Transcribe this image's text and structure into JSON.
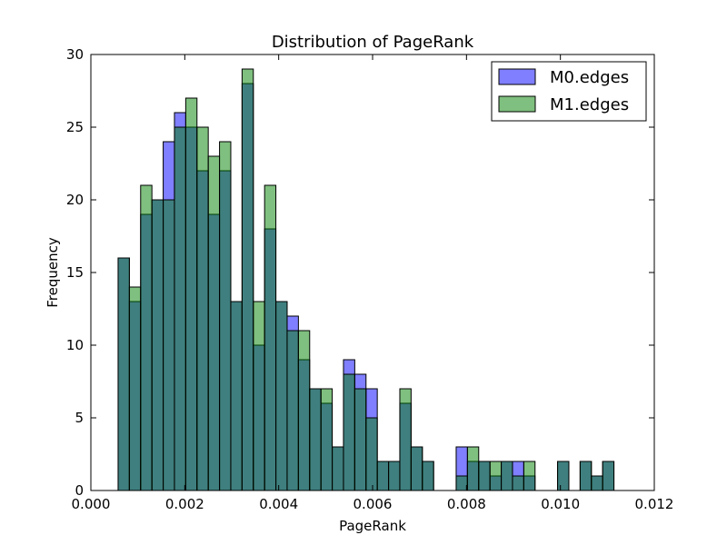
{
  "colors": {
    "series_0": "#0000ff",
    "series_1": "#008000",
    "edge": "#000000",
    "background": "#ffffff"
  },
  "chart_data": {
    "type": "bar",
    "title": "Distribution of PageRank",
    "xlabel": "PageRank",
    "ylabel": "Frequency",
    "xlim": [
      0.0,
      0.012
    ],
    "ylim": [
      0,
      30
    ],
    "x_ticks": [
      "0.000",
      "0.002",
      "0.004",
      "0.006",
      "0.008",
      "0.010",
      "0.012"
    ],
    "y_ticks": [
      "0",
      "5",
      "10",
      "15",
      "20",
      "25",
      "30"
    ],
    "grid": false,
    "legend_position": "top-right",
    "bin_start": 0.00058,
    "bin_width": 0.00024,
    "series": [
      {
        "name": "M0.edges",
        "color": "#0000ff",
        "alpha": 0.5,
        "values": [
          16,
          13,
          19,
          20,
          24,
          26,
          25,
          22,
          19,
          22,
          13,
          28,
          10,
          18,
          13,
          12,
          9,
          7,
          6,
          3,
          9,
          8,
          7,
          2,
          2,
          6,
          3,
          2,
          0,
          0,
          3,
          2,
          2,
          1,
          2,
          2,
          1,
          0,
          0,
          2,
          0,
          2,
          1,
          2
        ]
      },
      {
        "name": "M1.edges",
        "color": "#008000",
        "alpha": 0.5,
        "values": [
          16,
          14,
          21,
          20,
          20,
          25,
          27,
          25,
          23,
          24,
          13,
          29,
          13,
          21,
          13,
          11,
          11,
          7,
          7,
          3,
          8,
          7,
          5,
          2,
          2,
          7,
          3,
          2,
          0,
          0,
          1,
          3,
          2,
          2,
          2,
          1,
          2,
          0,
          0,
          2,
          0,
          2,
          1,
          2
        ]
      }
    ]
  }
}
